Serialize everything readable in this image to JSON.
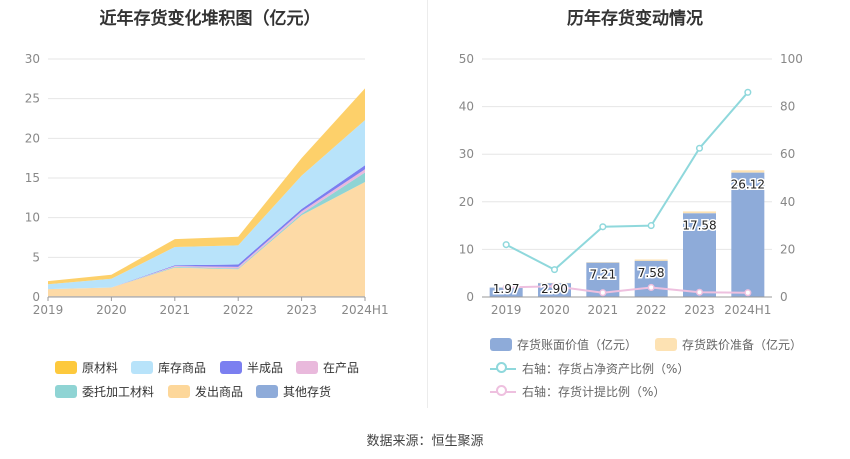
{
  "left": {
    "title": "近年存货变化堆积图（亿元）",
    "chart_data": {
      "type": "area",
      "stacked": true,
      "categories": [
        "2019",
        "2020",
        "2021",
        "2022",
        "2023",
        "2024H1"
      ],
      "ylim": [
        0,
        30
      ],
      "yticks": [
        0,
        5,
        10,
        15,
        20,
        25,
        30
      ],
      "grid": true,
      "legend_position": "bottom",
      "series": [
        {
          "name": "其他存货",
          "color": "#8eabd9",
          "values": [
            0.1,
            0.1,
            0.1,
            0.1,
            0.1,
            0.1
          ]
        },
        {
          "name": "发出商品",
          "color": "#fddaa6",
          "values": [
            0.9,
            1.1,
            3.6,
            3.4,
            10.2,
            14.4
          ]
        },
        {
          "name": "委托加工材料",
          "color": "#8fd4d4",
          "values": [
            0.0,
            0.0,
            0.1,
            0.1,
            0.2,
            1.2
          ]
        },
        {
          "name": "在产品",
          "color": "#e9b9dc",
          "values": [
            0.0,
            0.0,
            0.1,
            0.2,
            0.3,
            0.4
          ]
        },
        {
          "name": "半成品",
          "color": "#7b7ff0",
          "values": [
            0.0,
            0.0,
            0.1,
            0.3,
            0.3,
            0.5
          ]
        },
        {
          "name": "库存商品",
          "color": "#b8e3fa",
          "values": [
            0.6,
            1.1,
            2.3,
            2.4,
            4.2,
            5.7
          ]
        },
        {
          "name": "原材料",
          "color": "#fdd06a",
          "values": [
            0.4,
            0.5,
            1.0,
            1.1,
            2.2,
            4.0
          ]
        }
      ]
    },
    "legend_order": [
      "原材料",
      "库存商品",
      "半成品",
      "在产品",
      "委托加工材料",
      "发出商品",
      "其他存货"
    ]
  },
  "right": {
    "title": "历年存货变动情况",
    "chart_data": {
      "type": "bar",
      "categories": [
        "2019",
        "2020",
        "2021",
        "2022",
        "2023",
        "2024H1"
      ],
      "ylim_left": [
        0,
        50
      ],
      "yticks_left": [
        0,
        10,
        20,
        30,
        40,
        50
      ],
      "ylim_right": [
        0,
        100
      ],
      "yticks_right": [
        0,
        20,
        40,
        60,
        80,
        100
      ],
      "grid": true,
      "legend_position": "bottom",
      "series": [
        {
          "name": "存货账面价值（亿元）",
          "type": "bar",
          "axis": "left",
          "color": "#8eabd9",
          "values": [
            1.97,
            2.9,
            7.21,
            7.58,
            17.58,
            26.12
          ],
          "labels": [
            "1.97",
            "2.90",
            "7.21",
            "7.58",
            "17.58",
            "26.12"
          ]
        },
        {
          "name": "存货跌价准备（亿元）",
          "type": "bar",
          "axis": "left",
          "color": "#fde2b3",
          "values": [
            0.05,
            0.08,
            0.12,
            0.3,
            0.4,
            0.5
          ]
        },
        {
          "name": "右轴：存货占净资产比例（%）",
          "type": "line",
          "axis": "right",
          "color": "#8fd8dc",
          "values": [
            22,
            11.5,
            29.5,
            30,
            62.5,
            86
          ]
        },
        {
          "name": "右轴：存货计提比例（%）",
          "type": "line",
          "axis": "right",
          "color": "#eec0df",
          "values": [
            4,
            4.5,
            1.8,
            4,
            2,
            1.8
          ]
        }
      ]
    }
  },
  "source": "数据来源：恒生聚源"
}
